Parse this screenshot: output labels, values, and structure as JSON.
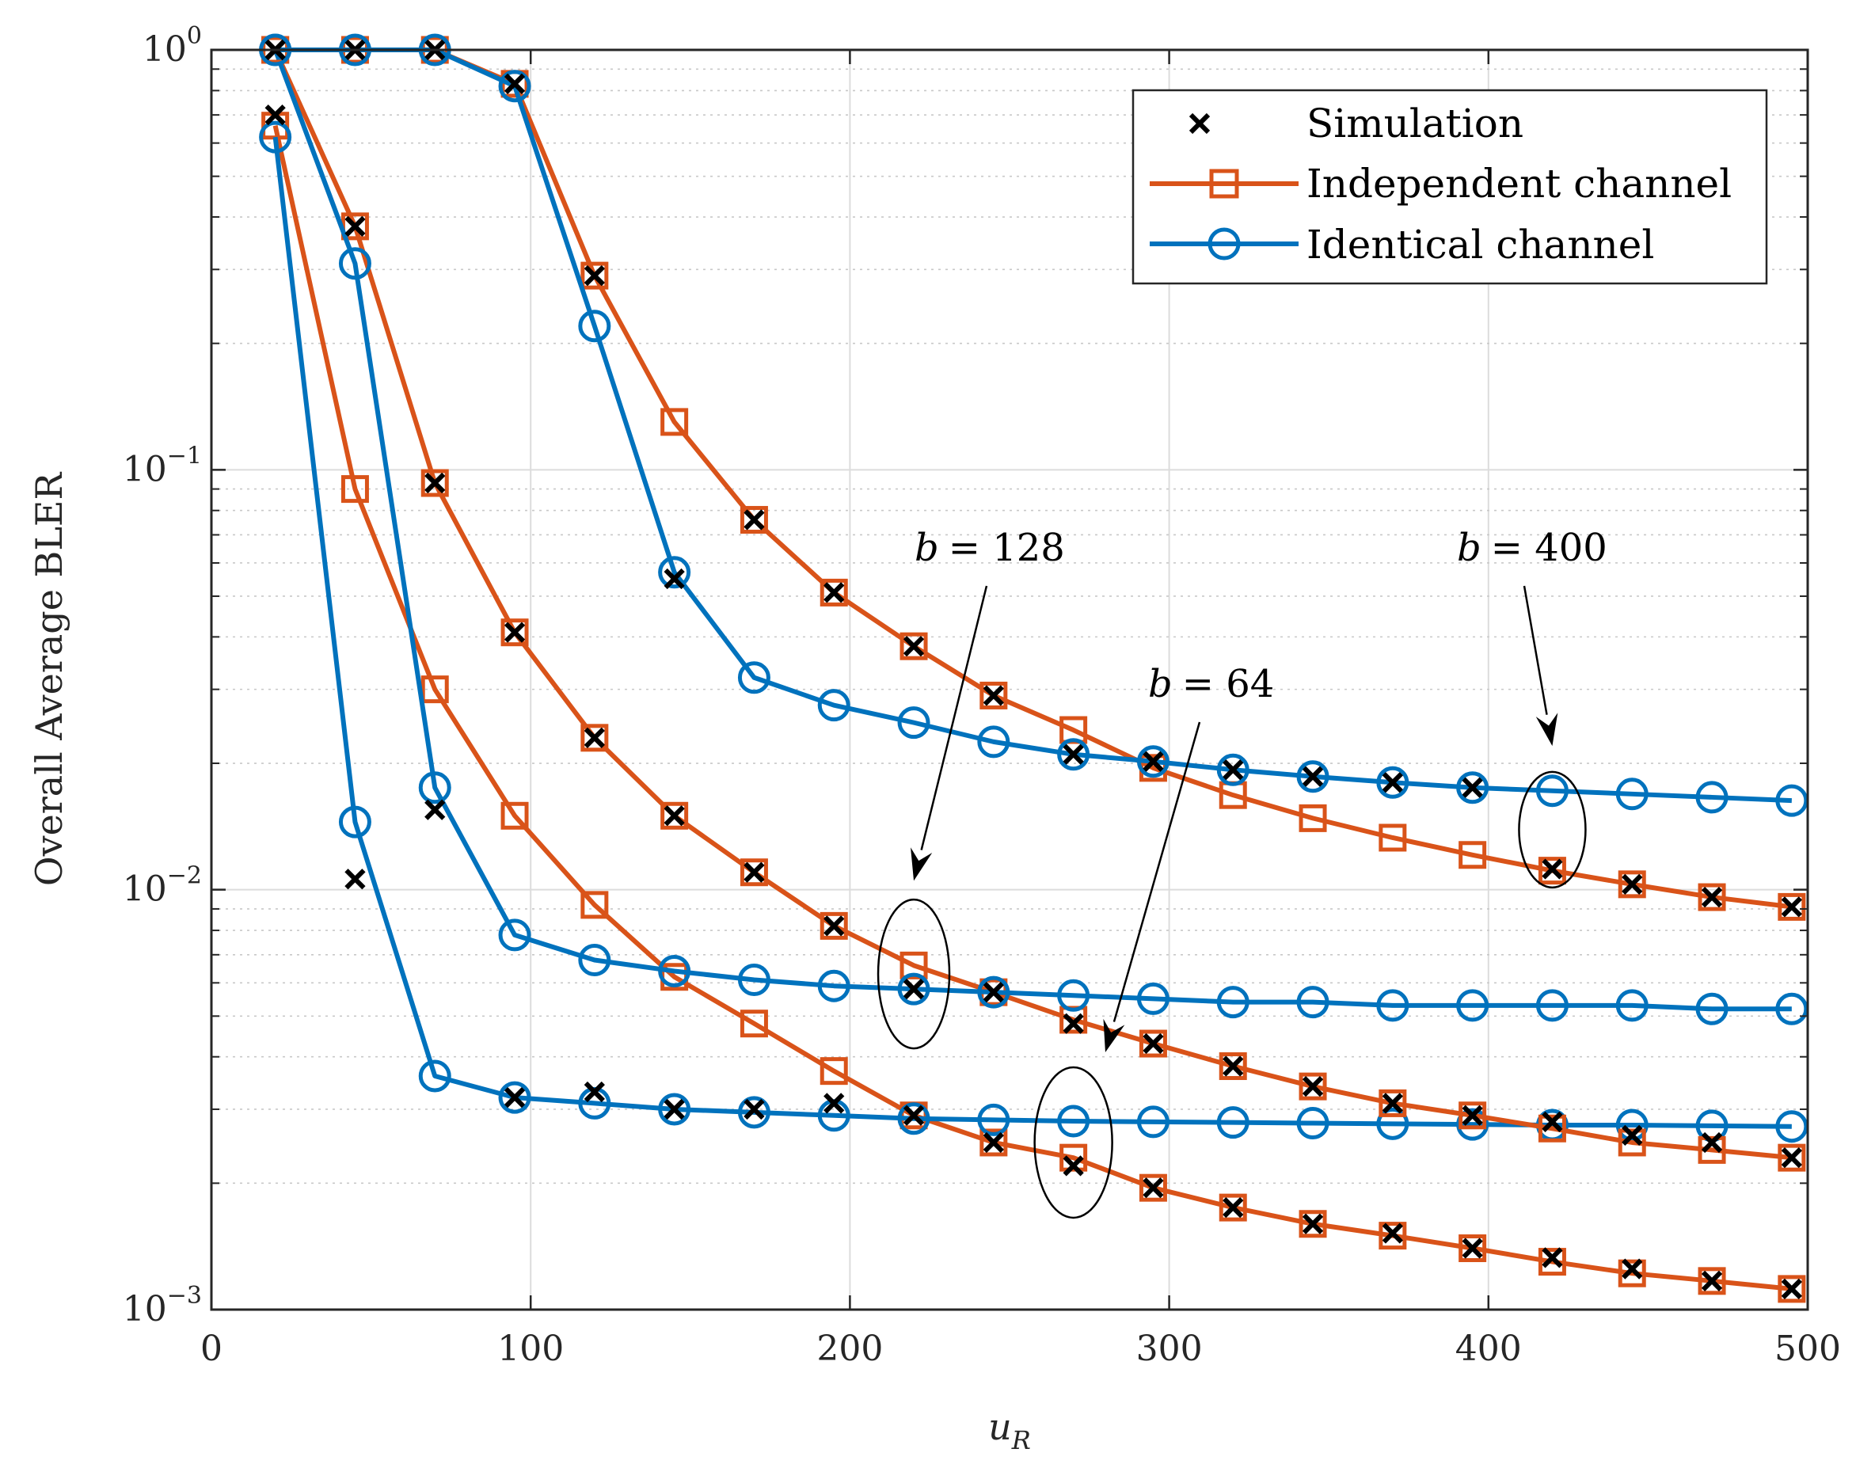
{
  "chart_data": {
    "type": "line",
    "yscale": "log",
    "xlabel": "u_R",
    "xlabel_main": "u",
    "xlabel_sub": "R",
    "ylabel": "Overall Average BLER",
    "xlim": [
      0,
      500
    ],
    "ylim": [
      0.001,
      1
    ],
    "xticks": [
      0,
      100,
      200,
      300,
      400,
      500
    ],
    "xtick_labels": [
      "0",
      "100",
      "200",
      "300",
      "400",
      "500"
    ],
    "yticks": [
      0.001,
      0.01,
      0.1,
      1
    ],
    "ytick_base": "10",
    "ytick_exps": [
      "−3",
      "−2",
      "−1",
      "0"
    ],
    "grid": true,
    "legend": {
      "position": "top-right",
      "entries": [
        "Simulation",
        "Independent channel",
        "Identical channel"
      ]
    },
    "colors": {
      "independent": "#D95319",
      "identical": "#0072BD",
      "simulation": "#000000"
    },
    "x": [
      20,
      45,
      70,
      95,
      120,
      145,
      170,
      195,
      220,
      245,
      270,
      295,
      320,
      345,
      370,
      395,
      420,
      445,
      470,
      495
    ],
    "series": [
      {
        "name": "Independent channel",
        "b": "64",
        "style": "independent",
        "values": [
          0.66,
          0.09,
          0.03,
          0.015,
          0.0092,
          0.0062,
          0.0048,
          0.0037,
          0.0029,
          0.0025,
          0.0023,
          0.00195,
          0.00175,
          0.0016,
          0.0015,
          0.0014,
          0.0013,
          0.00122,
          0.00117,
          0.00112
        ]
      },
      {
        "name": "Identical channel",
        "b": "64",
        "style": "identical",
        "values": [
          0.62,
          0.0145,
          0.0036,
          0.0032,
          0.0031,
          0.003,
          0.00295,
          0.0029,
          0.00285,
          0.00283,
          0.00281,
          0.0028,
          0.00279,
          0.00278,
          0.00277,
          0.00276,
          0.00275,
          0.00275,
          0.00274,
          0.00273
        ]
      },
      {
        "name": "Independent channel",
        "b": "128",
        "style": "independent",
        "values": [
          1.0,
          0.38,
          0.093,
          0.041,
          0.023,
          0.015,
          0.011,
          0.0082,
          0.0066,
          0.0057,
          0.0049,
          0.0043,
          0.0038,
          0.0034,
          0.0031,
          0.0029,
          0.0027,
          0.0025,
          0.0024,
          0.0023
        ]
      },
      {
        "name": "Identical channel",
        "b": "128",
        "style": "identical",
        "values": [
          1.0,
          0.31,
          0.0175,
          0.0078,
          0.0068,
          0.0064,
          0.0061,
          0.0059,
          0.0058,
          0.0057,
          0.0056,
          0.0055,
          0.0054,
          0.0054,
          0.0053,
          0.0053,
          0.0053,
          0.0053,
          0.0052,
          0.0052
        ]
      },
      {
        "name": "Independent channel",
        "b": "400",
        "style": "independent",
        "values": [
          1.0,
          1.0,
          1.0,
          0.83,
          0.29,
          0.13,
          0.076,
          0.051,
          0.038,
          0.029,
          0.024,
          0.0195,
          0.0168,
          0.0148,
          0.0133,
          0.0121,
          0.0111,
          0.0103,
          0.0096,
          0.0091
        ]
      },
      {
        "name": "Identical channel",
        "b": "400",
        "style": "identical",
        "values": [
          1.0,
          1.0,
          1.0,
          0.82,
          0.22,
          0.057,
          0.032,
          0.0275,
          0.025,
          0.0225,
          0.021,
          0.0202,
          0.0193,
          0.0186,
          0.018,
          0.0175,
          0.0172,
          0.0169,
          0.0166,
          0.0163
        ]
      }
    ],
    "simulation": [
      {
        "b": "64",
        "values": [
          0.7,
          0.0106,
          0.0155,
          0.0032,
          0.0033,
          0.003,
          0.003,
          0.0031,
          0.0029,
          0.0025,
          0.0022,
          0.00195,
          0.00175,
          0.0016,
          0.00152,
          0.0014,
          0.00133,
          0.00125,
          0.00117,
          0.00112
        ]
      },
      {
        "b": "128",
        "values": [
          1.0,
          0.38,
          0.093,
          0.041,
          0.023,
          0.015,
          0.011,
          0.0082,
          0.0058,
          0.0057,
          0.0048,
          0.0043,
          0.0038,
          0.0034,
          0.0031,
          0.0029,
          0.0028,
          0.0026,
          0.0025,
          0.0023
        ]
      },
      {
        "b": "400",
        "values": [
          1.0,
          1.0,
          1.0,
          0.83,
          0.29,
          0.055,
          0.076,
          0.051,
          0.038,
          0.029,
          0.021,
          0.0202,
          0.0193,
          0.0186,
          0.018,
          0.0175,
          0.0112,
          0.0103,
          0.0096,
          0.0091
        ]
      }
    ],
    "annotations": [
      {
        "id": "b64",
        "var": "b",
        "eq": "= 64",
        "ellipse_at": {
          "x": 270,
          "y": 0.0025
        },
        "points_to": {
          "x": 280,
          "y": 0.0041
        }
      },
      {
        "id": "b128",
        "var": "b",
        "eq": "= 128",
        "ellipse_at": {
          "x": 220,
          "y": 0.0063
        },
        "points_to": {
          "x": 220,
          "y": 0.0105
        }
      },
      {
        "id": "b400",
        "var": "b",
        "eq": "= 400",
        "ellipse_at": {
          "x": 420,
          "y": 0.0139
        },
        "points_to": {
          "x": 420,
          "y": 0.022
        }
      }
    ]
  }
}
